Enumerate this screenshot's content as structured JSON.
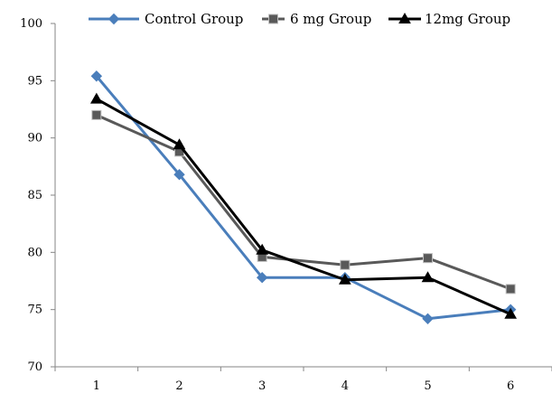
{
  "chart_data": {
    "type": "line",
    "x": [
      1,
      2,
      3,
      4,
      5,
      6
    ],
    "ylim": [
      70,
      100
    ],
    "yticks": [
      70,
      75,
      80,
      85,
      90,
      95,
      100
    ],
    "grid": false,
    "legend_position": "top",
    "series": [
      {
        "name": "Control Group",
        "values": [
          95.4,
          86.8,
          77.8,
          77.8,
          74.2,
          75.0
        ],
        "color": "#4a7ebb",
        "marker": "diamond"
      },
      {
        "name": "6 mg Group",
        "values": [
          92.0,
          88.8,
          79.6,
          78.9,
          79.5,
          76.8
        ],
        "color": "#595959",
        "marker": "square"
      },
      {
        "name": "12mg Group",
        "values": [
          93.4,
          89.4,
          80.2,
          77.6,
          77.8,
          74.6
        ],
        "color": "#000000",
        "marker": "triangle"
      }
    ]
  }
}
